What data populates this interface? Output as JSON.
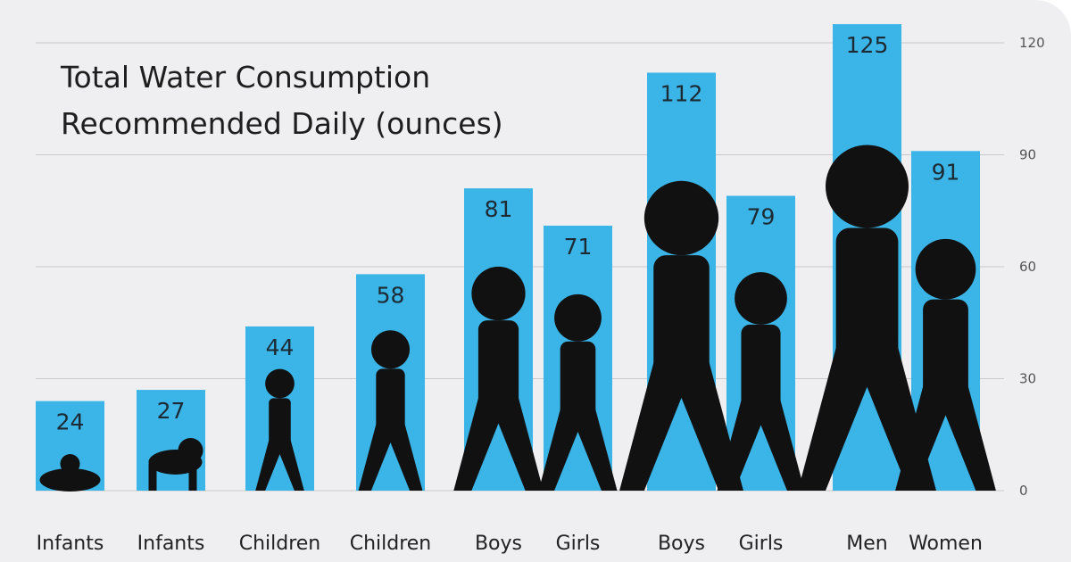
{
  "chart_data": {
    "type": "bar",
    "title_lines": [
      "Total Water Consumption",
      "Recommended Daily (ounces)"
    ],
    "categories": [
      "Infants",
      "Infants",
      "Children",
      "Children",
      "Boys",
      "Girls",
      "Boys",
      "Girls",
      "Men",
      "Women"
    ],
    "values": [
      24,
      27,
      44,
      58,
      81,
      71,
      112,
      79,
      125,
      91
    ],
    "ylim": [
      0,
      120
    ],
    "yticks": [
      0,
      30,
      60,
      90,
      120
    ],
    "y_axis_side": "right",
    "grid": true,
    "bar_color": "#3bb5e8",
    "silhouette_color": "#111111"
  }
}
